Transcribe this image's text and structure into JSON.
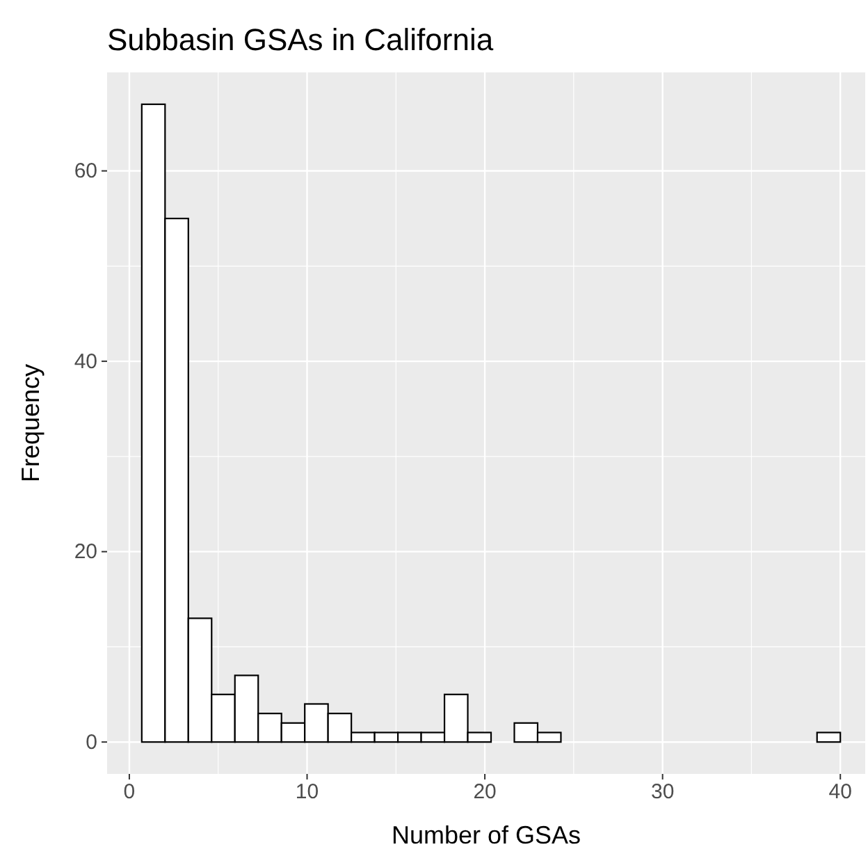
{
  "chart_data": {
    "type": "histogram",
    "title": "Subbasin GSAs in California",
    "xlabel": "Number of GSAs",
    "ylabel": "Frequency",
    "bins": [
      0.7,
      2.01,
      3.32,
      4.63,
      5.94,
      7.25,
      8.56,
      9.87,
      11.18,
      12.49,
      13.8,
      15.11,
      16.42,
      17.73,
      19.04,
      20.35,
      21.66,
      22.97,
      24.28,
      25.59,
      26.9,
      28.21,
      29.52,
      30.83,
      32.14,
      33.45,
      34.76,
      36.07,
      37.38,
      38.69,
      40.0
    ],
    "values": [
      67,
      55,
      13,
      5,
      7,
      3,
      2,
      4,
      3,
      1,
      1,
      1,
      1,
      5,
      1,
      0,
      2,
      1,
      0,
      0,
      0,
      0,
      0,
      0,
      0,
      0,
      0,
      0,
      0,
      1
    ],
    "color": "#ffffff",
    "xlim": [
      -1.25,
      41.4
    ],
    "xticks": [
      0,
      10,
      20,
      30,
      40
    ],
    "ylim": [
      -3.35,
      70.35
    ],
    "yticks": [
      0,
      20,
      40,
      60
    ],
    "grid": true
  }
}
